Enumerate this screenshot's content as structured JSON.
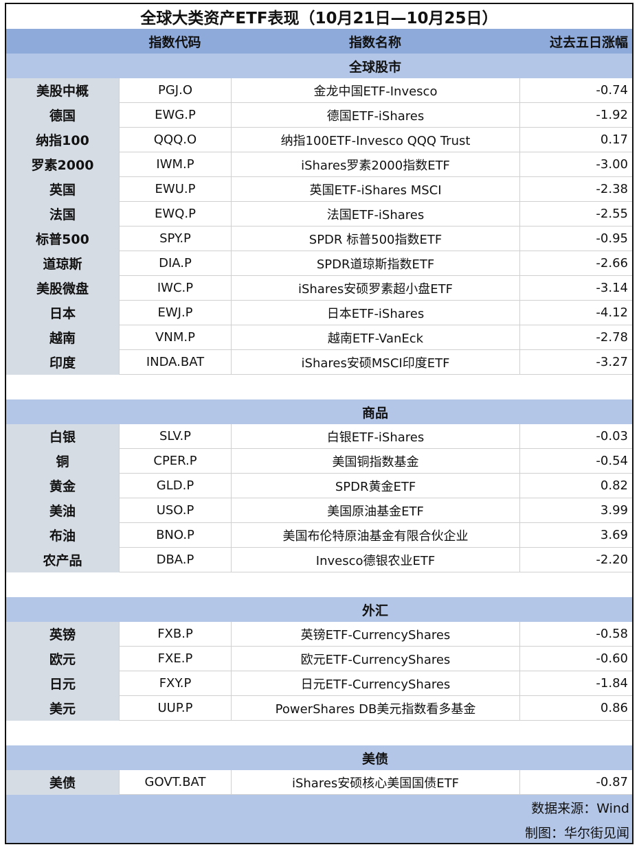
{
  "title": "全球大类资产ETF表现（10月21日—10月25日）",
  "headers": [
    "",
    "指数代码",
    "指数名称",
    "过去五日涨幅"
  ],
  "sections": [
    {
      "name": "全球股市",
      "rows": [
        [
          "美股中概",
          "PGJ.O",
          "金龙中国ETF-Invesco",
          "-0.74"
        ],
        [
          "德国",
          "EWG.P",
          "德国ETF-iShares",
          "-1.92"
        ],
        [
          "纳指100",
          "QQQ.O",
          "纳指100ETF-Invesco QQQ Trust",
          "0.17"
        ],
        [
          "罗素2000",
          "IWM.P",
          "iShares罗素2000指数ETF",
          "-3.00"
        ],
        [
          "英国",
          "EWU.P",
          "英国ETF-iShares MSCI",
          "-2.38"
        ],
        [
          "法国",
          "EWQ.P",
          "法国ETF-iShares",
          "-2.55"
        ],
        [
          "标普500",
          "SPY.P",
          "SPDR 标普500指数ETF",
          "-0.95"
        ],
        [
          "道琼斯",
          "DIA.P",
          "SPDR道琼斯指数ETF",
          "-2.66"
        ],
        [
          "美股微盘",
          "IWC.P",
          "iShares安硕罗素超小盘ETF",
          "-3.14"
        ],
        [
          "日本",
          "EWJ.P",
          "日本ETF-iShares",
          "-4.12"
        ],
        [
          "越南",
          "VNM.P",
          "越南ETF-VanEck",
          "-2.78"
        ],
        [
          "印度",
          "INDA.BAT",
          "iShares安硕MSCI印度ETF",
          "-3.27"
        ]
      ]
    },
    {
      "name": "商品",
      "rows": [
        [
          "白银",
          "SLV.P",
          "白银ETF-iShares",
          "-0.03"
        ],
        [
          "铜",
          "CPER.P",
          "美国铜指数基金",
          "-0.54"
        ],
        [
          "黄金",
          "GLD.P",
          "SPDR黄金ETF",
          "0.82"
        ],
        [
          "美油",
          "USO.P",
          "美国原油基金ETF",
          "3.99"
        ],
        [
          "布油",
          "BNO.P",
          "美国布伦特原油基金有限合伙企业",
          "3.69"
        ],
        [
          "农产品",
          "DBA.P",
          "Invesco德银农业ETF",
          "-2.20"
        ]
      ]
    },
    {
      "name": "外汇",
      "rows": [
        [
          "英镑",
          "FXB.P",
          "英镑ETF-CurrencyShares",
          "-0.58"
        ],
        [
          "欧元",
          "FXE.P",
          "欧元ETF-CurrencyShares",
          "-0.60"
        ],
        [
          "日元",
          "FXY.P",
          "日元ETF-CurrencyShares",
          "-1.84"
        ],
        [
          "美元",
          "UUP.P",
          "PowerShares DB美元指数看多基金",
          "0.86"
        ]
      ]
    },
    {
      "name": "美债",
      "rows": [
        [
          "美债",
          "GOVT.BAT",
          "iShares安硕核心美国国债ETF",
          "-0.87"
        ]
      ]
    }
  ],
  "footer": {
    "source": "数据来源：Wind",
    "credit": "制图：华尔街见闻"
  },
  "colors": {
    "header": "#8eaadb",
    "section": "#b4c6e7",
    "label_col": "#d6dce4"
  }
}
